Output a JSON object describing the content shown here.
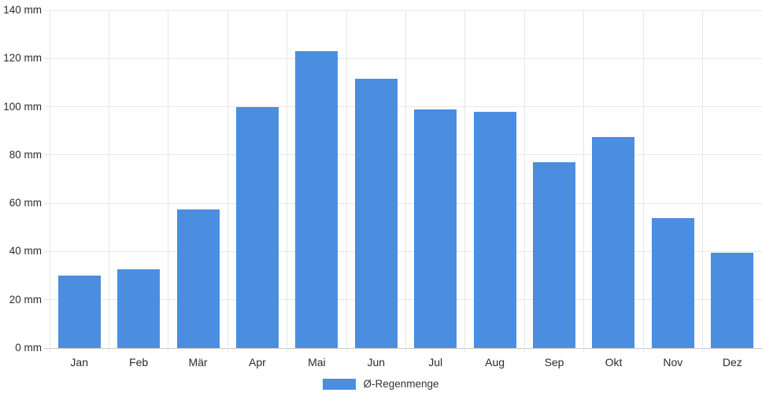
{
  "chart_data": {
    "type": "bar",
    "title": "",
    "categories": [
      "Jan",
      "Feb",
      "Mär",
      "Apr",
      "Mai",
      "Jun",
      "Jul",
      "Aug",
      "Sep",
      "Okt",
      "Nov",
      "Dez"
    ],
    "series": [
      {
        "name": "Ø-Regenmenge",
        "values": [
          30,
          32.5,
          57.5,
          100,
          123,
          111.5,
          99,
          98,
          77,
          87.5,
          54,
          39.5
        ],
        "color": "#4b8edf"
      }
    ],
    "ylabel": "",
    "xlabel": "",
    "y_ticks": [
      0,
      20,
      40,
      60,
      80,
      100,
      120,
      140
    ],
    "y_tick_suffix": " mm",
    "ylim": [
      0,
      140
    ],
    "grid": true,
    "legend_position": "bottom"
  },
  "colors": {
    "bar": "#4b8edf",
    "gridline": "#e7e7e7",
    "baseline": "#c9c9c9",
    "text": "#2b2b2b"
  }
}
